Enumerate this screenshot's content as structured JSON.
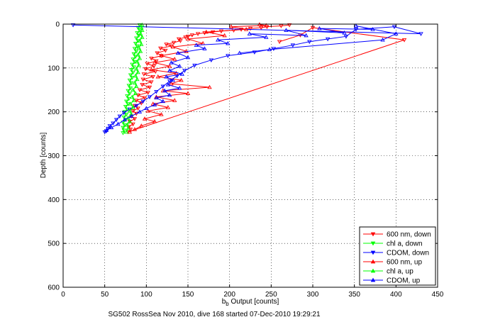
{
  "figure": {
    "caption": "SG502 RossSea Nov 2010, dive 168 started 07-Dec-2010 19:29:21"
  },
  "chart_data": {
    "type": "line",
    "ylabel": "Depth [counts]",
    "xlabel_base": "b",
    "xlabel_sub": "b",
    "xlabel_rest": " Output [counts]",
    "xlim": [
      0,
      450
    ],
    "ylim": [
      0,
      600
    ],
    "y_reversed": true,
    "grid": "dotted",
    "legend_position": "bottom-right",
    "x_ticks": [
      "0",
      "50",
      "100",
      "150",
      "200",
      "250",
      "300",
      "350",
      "400",
      "450"
    ],
    "y_ticks": [
      "0",
      "100",
      "200",
      "300",
      "400",
      "500",
      "600"
    ],
    "series": [
      {
        "name": "600 nm, down",
        "color": "#ff0000",
        "marker": "triangle-down",
        "points": [
          [
            272,
            2
          ],
          [
            262,
            4
          ],
          [
            245,
            6
          ],
          [
            238,
            8
          ],
          [
            225,
            10
          ],
          [
            214,
            12
          ],
          [
            205,
            14
          ],
          [
            190,
            16
          ],
          [
            180,
            18
          ],
          [
            170,
            20
          ],
          [
            162,
            22
          ],
          [
            155,
            25
          ],
          [
            150,
            28
          ],
          [
            147,
            30
          ],
          [
            139,
            34
          ],
          [
            141,
            38
          ],
          [
            133,
            42
          ],
          [
            124,
            46
          ],
          [
            130,
            50
          ],
          [
            117,
            55
          ],
          [
            123,
            60
          ],
          [
            113,
            66
          ],
          [
            118,
            72
          ],
          [
            106,
            78
          ],
          [
            112,
            84
          ],
          [
            101,
            90
          ],
          [
            109,
            96
          ],
          [
            99,
            102
          ],
          [
            111,
            108
          ],
          [
            97,
            114
          ],
          [
            108,
            120
          ],
          [
            96,
            126
          ],
          [
            106,
            132
          ],
          [
            95,
            138
          ],
          [
            104,
            144
          ],
          [
            92,
            150
          ],
          [
            102,
            156
          ],
          [
            90,
            162
          ],
          [
            98,
            168
          ],
          [
            88,
            174
          ],
          [
            94,
            180
          ],
          [
            86,
            186
          ],
          [
            90,
            192
          ],
          [
            84,
            198
          ],
          [
            88,
            204
          ],
          [
            82,
            210
          ],
          [
            86,
            216
          ],
          [
            80,
            222
          ],
          [
            84,
            228
          ],
          [
            79,
            234
          ],
          [
            81,
            240
          ],
          [
            78,
            246
          ],
          [
            410,
            36
          ],
          [
            300,
            8
          ],
          [
            285,
            25
          ],
          [
            260,
            40
          ]
        ]
      },
      {
        "name": "chl a, down",
        "color": "#00ff00",
        "marker": "triangle-down",
        "points": [
          [
            92,
            2
          ],
          [
            90,
            8
          ],
          [
            92,
            14
          ],
          [
            89,
            20
          ],
          [
            91,
            26
          ],
          [
            88,
            32
          ],
          [
            90,
            38
          ],
          [
            87,
            44
          ],
          [
            89,
            50
          ],
          [
            86,
            56
          ],
          [
            88,
            62
          ],
          [
            85,
            68
          ],
          [
            87,
            74
          ],
          [
            84,
            80
          ],
          [
            86,
            86
          ],
          [
            83,
            92
          ],
          [
            85,
            98
          ],
          [
            82,
            104
          ],
          [
            84,
            110
          ],
          [
            81,
            116
          ],
          [
            83,
            122
          ],
          [
            80,
            128
          ],
          [
            82,
            134
          ],
          [
            79,
            140
          ],
          [
            81,
            146
          ],
          [
            78,
            152
          ],
          [
            80,
            158
          ],
          [
            77,
            164
          ],
          [
            79,
            170
          ],
          [
            76,
            176
          ],
          [
            78,
            182
          ],
          [
            75,
            188
          ],
          [
            77,
            194
          ],
          [
            74,
            200
          ],
          [
            76,
            206
          ],
          [
            73,
            212
          ],
          [
            75,
            218
          ],
          [
            72,
            224
          ],
          [
            74,
            230
          ],
          [
            72,
            236
          ],
          [
            73,
            242
          ],
          [
            72,
            248
          ]
        ]
      },
      {
        "name": "CDOM, down",
        "color": "#0000ff",
        "marker": "triangle-down",
        "points": [
          [
            12,
            2
          ],
          [
            430,
            22
          ],
          [
            398,
            6
          ],
          [
            352,
            12
          ],
          [
            340,
            28
          ],
          [
            318,
            34
          ],
          [
            296,
            40
          ],
          [
            276,
            48
          ],
          [
            253,
            56
          ],
          [
            230,
            64
          ],
          [
            198,
            72
          ],
          [
            178,
            82
          ],
          [
            158,
            94
          ],
          [
            146,
            106
          ],
          [
            137,
            118
          ],
          [
            128,
            130
          ],
          [
            120,
            142
          ],
          [
            112,
            154
          ],
          [
            104,
            166
          ],
          [
            96,
            176
          ],
          [
            88,
            186
          ],
          [
            80,
            194
          ],
          [
            73,
            202
          ],
          [
            68,
            210
          ],
          [
            64,
            218
          ],
          [
            60,
            226
          ],
          [
            56,
            232
          ],
          [
            54,
            238
          ],
          [
            52,
            244
          ],
          [
            50,
            246
          ]
        ]
      },
      {
        "name": "600 nm, up",
        "color": "#ff0000",
        "marker": "triangle-up",
        "points": [
          [
            80,
            246
          ],
          [
            86,
            240
          ],
          [
            94,
            232
          ],
          [
            110,
            222
          ],
          [
            98,
            216
          ],
          [
            118,
            206
          ],
          [
            102,
            198
          ],
          [
            126,
            190
          ],
          [
            108,
            182
          ],
          [
            134,
            174
          ],
          [
            112,
            166
          ],
          [
            150,
            158
          ],
          [
            120,
            152
          ],
          [
            176,
            144
          ],
          [
            130,
            136
          ],
          [
            142,
            128
          ],
          [
            114,
            120
          ],
          [
            136,
            112
          ],
          [
            106,
            104
          ],
          [
            128,
            96
          ],
          [
            110,
            88
          ],
          [
            134,
            80
          ],
          [
            118,
            72
          ],
          [
            148,
            62
          ],
          [
            132,
            52
          ],
          [
            168,
            44
          ],
          [
            150,
            34
          ],
          [
            194,
            26
          ],
          [
            172,
            18
          ],
          [
            220,
            12
          ],
          [
            202,
            6
          ],
          [
            244,
            3
          ],
          [
            236,
            1
          ]
        ]
      },
      {
        "name": "chl a, up",
        "color": "#00ff00",
        "marker": "triangle-up",
        "points": [
          [
            76,
            246
          ],
          [
            78,
            238
          ],
          [
            77,
            230
          ],
          [
            80,
            222
          ],
          [
            78,
            214
          ],
          [
            82,
            206
          ],
          [
            80,
            198
          ],
          [
            84,
            190
          ],
          [
            81,
            182
          ],
          [
            85,
            174
          ],
          [
            83,
            166
          ],
          [
            87,
            158
          ],
          [
            84,
            150
          ],
          [
            88,
            142
          ],
          [
            86,
            134
          ],
          [
            89,
            126
          ],
          [
            87,
            118
          ],
          [
            90,
            110
          ],
          [
            88,
            102
          ],
          [
            91,
            94
          ],
          [
            89,
            86
          ],
          [
            92,
            78
          ],
          [
            90,
            70
          ],
          [
            93,
            62
          ],
          [
            91,
            54
          ],
          [
            94,
            46
          ],
          [
            92,
            38
          ],
          [
            95,
            30
          ],
          [
            93,
            22
          ],
          [
            95,
            14
          ],
          [
            94,
            8
          ],
          [
            95,
            2
          ]
        ]
      },
      {
        "name": "CDOM, up",
        "color": "#0000ff",
        "marker": "triangle-up",
        "points": [
          [
            52,
            242
          ],
          [
            58,
            236
          ],
          [
            66,
            228
          ],
          [
            74,
            218
          ],
          [
            82,
            210
          ],
          [
            92,
            200
          ],
          [
            100,
            192
          ],
          [
            110,
            184
          ],
          [
            120,
            176
          ],
          [
            112,
            168
          ],
          [
            128,
            162
          ],
          [
            122,
            152
          ],
          [
            140,
            146
          ],
          [
            126,
            138
          ],
          [
            132,
            128
          ],
          [
            124,
            120
          ],
          [
            143,
            114
          ],
          [
            128,
            106
          ],
          [
            140,
            96
          ],
          [
            130,
            88
          ],
          [
            150,
            76
          ],
          [
            138,
            66
          ],
          [
            170,
            56
          ],
          [
            160,
            48
          ],
          [
            198,
            44
          ],
          [
            186,
            36
          ],
          [
            244,
            30
          ],
          [
            224,
            22
          ],
          [
            292,
            26
          ],
          [
            268,
            14
          ],
          [
            338,
            20
          ],
          [
            308,
            10
          ],
          [
            372,
            12
          ],
          [
            352,
            4
          ],
          [
            400,
            22
          ],
          [
            384,
            36
          ],
          [
            248,
            58
          ],
          [
            212,
            66
          ]
        ]
      }
    ]
  }
}
